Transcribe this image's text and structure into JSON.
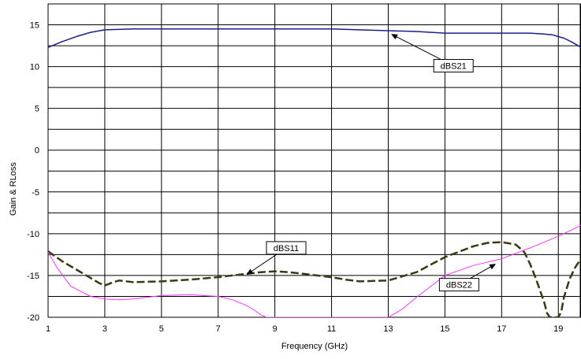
{
  "chart_data": {
    "type": "line",
    "title": "",
    "xlabel": "Frequency (GHz)",
    "ylabel": "Gain & RLoss",
    "xlim": [
      1,
      19.8
    ],
    "ylim": [
      -20,
      17.5
    ],
    "x_ticks": [
      1,
      3,
      5,
      7,
      9,
      11,
      13,
      15,
      17,
      19
    ],
    "y_ticks": [
      15,
      10,
      5,
      0,
      -5,
      -10,
      -15,
      -20
    ],
    "x_ticks_labels": [
      "1",
      "3",
      "5",
      "7",
      "9",
      "11",
      "13",
      "15",
      "17",
      "19"
    ],
    "y_ticks_labels": [
      "15",
      "10",
      "5",
      "0",
      "-5",
      "-10",
      "-15",
      "-20"
    ],
    "minor_y_gridlines": [
      12.5,
      7.5,
      2.5,
      -2.5,
      -7.5,
      -12.5,
      -17.5
    ],
    "minor_x_gridlines": [
      19.8
    ],
    "grid": true,
    "legend": "none",
    "series": [
      {
        "name": "dBS21",
        "color": "#1a1f8c",
        "style": "solid",
        "x": [
          1,
          1.5,
          2,
          2.5,
          3,
          4,
          5,
          6,
          7,
          8,
          9,
          10,
          11,
          12,
          13,
          14,
          15,
          16,
          17,
          18,
          18.5,
          18.8,
          19.2,
          19.5,
          19.8
        ],
        "values": [
          12.3,
          13.0,
          13.6,
          14.1,
          14.4,
          14.5,
          14.5,
          14.5,
          14.5,
          14.5,
          14.5,
          14.5,
          14.5,
          14.4,
          14.3,
          14.2,
          14.0,
          14.0,
          14.0,
          14.0,
          13.9,
          13.8,
          13.4,
          12.9,
          12.3
        ]
      },
      {
        "name": "dBS11",
        "color": "#3a3a14",
        "style": "dashed",
        "x": [
          1,
          1.5,
          2,
          2.5,
          2.8,
          3.0,
          3.3,
          3.5,
          4,
          5,
          6,
          7,
          7.5,
          8,
          8.5,
          9,
          9.5,
          10,
          11,
          11.5,
          12,
          13,
          14,
          15,
          16,
          16.5,
          17,
          17.5,
          17.8,
          18.0,
          18.2,
          18.5,
          18.6,
          18.7,
          19.0,
          19.1,
          19.2,
          19.4,
          19.6,
          19.8
        ],
        "values": [
          -12.1,
          -13.3,
          -14.3,
          -15.3,
          -15.9,
          -16.2,
          -15.8,
          -15.6,
          -15.8,
          -15.7,
          -15.5,
          -15.2,
          -15.0,
          -14.8,
          -14.6,
          -14.5,
          -14.6,
          -14.8,
          -15.2,
          -15.5,
          -15.7,
          -15.6,
          -14.6,
          -12.8,
          -11.5,
          -11.1,
          -11.0,
          -11.3,
          -12.2,
          -13.6,
          -15.3,
          -18.2,
          -19.5,
          -20.0,
          -20.0,
          -19.4,
          -17.6,
          -15.4,
          -14.0,
          -13.0
        ]
      },
      {
        "name": "dBS22",
        "color": "#ff33ff",
        "style": "solid",
        "x": [
          1,
          1.3,
          1.8,
          2.5,
          3,
          3.5,
          4,
          5,
          6,
          7,
          7.5,
          8,
          8.3,
          8.5,
          8.7,
          13.0,
          13.5,
          14,
          15,
          16,
          17,
          18,
          19,
          19.8
        ],
        "values": [
          -12.2,
          -14.0,
          -16.3,
          -17.5,
          -17.8,
          -17.9,
          -17.8,
          -17.4,
          -17.3,
          -17.5,
          -17.9,
          -18.6,
          -19.2,
          -19.7,
          -20.0,
          -20.0,
          -19.0,
          -17.6,
          -15.0,
          -13.8,
          -13.0,
          -11.7,
          -10.3,
          -9.0
        ]
      }
    ],
    "annotations": [
      {
        "text": "dBS21",
        "target": {
          "x": 13.1,
          "y": 13.9
        },
        "box_center": {
          "x": 15.3,
          "y": 10.1
        }
      },
      {
        "text": "dBS11",
        "target": {
          "x": 8.0,
          "y": -14.9
        },
        "box_center": {
          "x": 9.4,
          "y": -11.7
        }
      },
      {
        "text": "dBS22",
        "target": {
          "x": 16.8,
          "y": -13.6
        },
        "box_center": {
          "x": 15.5,
          "y": -16.1
        }
      }
    ]
  }
}
